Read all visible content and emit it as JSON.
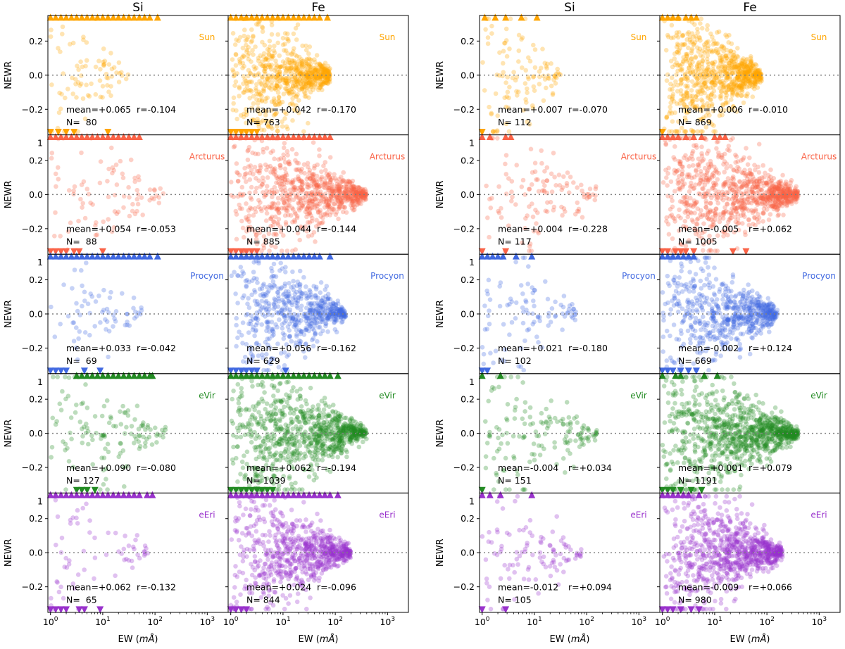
{
  "figure": {
    "ylabel": "NEWR",
    "xlabel": "EW (mÅ)",
    "xlabel_prefix": "EW (",
    "xlabel_unit": "mÅ",
    "xlabel_suffix": ")",
    "ytick_labels": [
      "0.2",
      "0.0",
      "−0.2"
    ],
    "ytick_values": [
      0.2,
      0.0,
      -0.2
    ],
    "ylim": [
      -0.35,
      0.35
    ],
    "xlim_log10": [
      -0.05,
      3.4
    ],
    "xticks": [
      {
        "base": "10",
        "exp": "0",
        "log": 0
      },
      {
        "base": "10",
        "exp": "1",
        "log": 1
      },
      {
        "base": "10",
        "exp": "2",
        "log": 2
      },
      {
        "base": "10",
        "exp": "3",
        "log": 3
      }
    ],
    "top_clip_label": "1",
    "reference_line": 0.0
  },
  "columns": [
    "Si",
    "Fe",
    "Si",
    "Fe"
  ],
  "stars": [
    "Sun",
    "Arcturus",
    "Procyon",
    "eVir",
    "eEri"
  ],
  "colors": {
    "Sun": "#ffa500",
    "Arcturus": "#fa6347",
    "Procyon": "#4169e1",
    "eVir": "#228b22",
    "eEri": "#9932cc"
  },
  "chart_data": {
    "type": "scatter",
    "x_scale": "log",
    "stats": [
      [
        {
          "mean": "mean=+0.065",
          "r": "r=-0.104",
          "n": "N=  80"
        },
        {
          "mean": "mean=+0.042",
          "r": "r=-0.170",
          "n": "N= 763"
        },
        {
          "mean": "mean=+0.007",
          "r": "r=-0.070",
          "n": "N= 112"
        },
        {
          "mean": "mean=+0.006",
          "r": "r=-0.010",
          "n": "N= 869"
        }
      ],
      [
        {
          "mean": "mean=+0.054",
          "r": "r=-0.053",
          "n": "N=  88"
        },
        {
          "mean": "mean=+0.044",
          "r": "r=-0.144",
          "n": "N= 885"
        },
        {
          "mean": "mean=+0.004",
          "r": "r=-0.228",
          "n": "N= 117"
        },
        {
          "mean": "mean=-0.005",
          "r": "r=+0.062",
          "n": "N= 1005"
        }
      ],
      [
        {
          "mean": "mean=+0.033",
          "r": "r=-0.042",
          "n": "N=  69"
        },
        {
          "mean": "mean=+0.056",
          "r": "r=-0.162",
          "n": "N= 629"
        },
        {
          "mean": "mean=+0.021",
          "r": "r=-0.180",
          "n": "N= 102"
        },
        {
          "mean": "mean=-0.002",
          "r": "r=+0.124",
          "n": "N= 669"
        }
      ],
      [
        {
          "mean": "mean=+0.090",
          "r": "r=-0.080",
          "n": "N= 127"
        },
        {
          "mean": "mean=+0.062",
          "r": "r=-0.194",
          "n": "N= 1039"
        },
        {
          "mean": "mean=-0.004",
          "r": "r=+0.034",
          "n": "N= 151"
        },
        {
          "mean": "mean=+0.001",
          "r": "r=+0.079",
          "n": "N= 1191"
        }
      ],
      [
        {
          "mean": "mean=+0.062",
          "r": "r=-0.132",
          "n": "N=  65"
        },
        {
          "mean": "mean=+0.024",
          "r": "r=-0.096",
          "n": "N= 844"
        },
        {
          "mean": "mean=-0.012",
          "r": "r=+0.094",
          "n": "N= 105"
        },
        {
          "mean": "mean=-0.009",
          "r": "r=+0.066",
          "n": "N= 980"
        }
      ]
    ],
    "ew_range_log10": [
      [
        0.0,
        1.9
      ],
      [
        0.0,
        2.6
      ],
      [
        0.0,
        2.2
      ],
      [
        0.0,
        2.6
      ],
      [
        0.0,
        2.3
      ]
    ],
    "clipped_markers_log10": {
      "top": [
        [
          [
            0.0,
            0.1,
            0.2,
            0.3,
            0.4,
            0.5,
            0.6,
            0.7,
            0.8,
            0.9,
            1.0,
            1.1,
            1.2,
            1.3,
            1.4,
            1.5,
            1.6,
            1.7,
            1.8,
            1.9,
            2.05
          ],
          [
            0.0,
            0.1,
            0.2,
            0.3,
            0.4,
            0.5,
            0.6,
            0.7,
            0.8,
            0.9,
            1.0,
            1.1,
            1.2,
            1.3,
            1.4,
            1.5,
            1.6,
            1.7,
            1.85
          ],
          [
            0.05,
            0.25,
            0.45,
            0.75,
            1.05
          ],
          [
            0.0,
            0.1,
            0.2,
            0.3,
            0.45,
            0.55,
            0.65
          ]
        ],
        [
          [
            0.0,
            0.1,
            0.2,
            0.3,
            0.4,
            0.5,
            0.6,
            0.7,
            0.8,
            0.9,
            1.0,
            1.1,
            1.2,
            1.3,
            1.4,
            1.5,
            1.6,
            1.7
          ],
          [
            0.0,
            0.1,
            0.2,
            0.3,
            0.4,
            0.5,
            0.6,
            0.7,
            0.8,
            0.9,
            1.0,
            1.1,
            1.2,
            1.3,
            1.4,
            1.5,
            1.6,
            1.7,
            1.8,
            1.9
          ],
          [
            0.0,
            0.15,
            0.45,
            0.55
          ],
          [
            0.0,
            0.1,
            0.2,
            0.3,
            0.45,
            0.6,
            0.75,
            1.0,
            1.1,
            1.2
          ]
        ],
        [
          [
            0.0,
            0.1,
            0.2,
            0.3,
            0.4,
            0.5,
            0.6,
            0.7,
            0.8,
            0.9,
            1.0,
            1.1,
            1.2,
            1.3,
            1.4,
            1.5,
            1.6,
            1.7,
            1.8,
            1.9,
            2.05
          ],
          [
            0.0,
            0.1,
            0.2,
            0.3,
            0.4,
            0.5,
            0.6,
            0.7,
            0.8,
            0.9,
            1.0,
            1.1,
            1.2,
            1.3,
            1.4,
            1.5,
            1.6,
            1.7,
            1.9
          ],
          [
            0.0,
            0.1,
            0.2,
            0.3,
            0.4,
            0.65,
            0.95
          ],
          [
            0.0,
            0.1,
            0.2,
            0.3,
            0.4,
            0.5,
            0.6
          ]
        ],
        [
          [
            0.5,
            0.6,
            0.7,
            0.8,
            0.9,
            1.0,
            1.1,
            1.2,
            1.3,
            1.4,
            1.5,
            1.6,
            1.7,
            1.8,
            1.9,
            1.95
          ],
          [
            0.0,
            0.1,
            0.2,
            0.3,
            0.4,
            0.5,
            0.6,
            0.7,
            0.8,
            0.9,
            1.0,
            1.1,
            1.2,
            1.3,
            1.4,
            1.5,
            1.6,
            1.7,
            1.8,
            1.9,
            2.05
          ],
          [
            0.0,
            0.35
          ],
          [
            0.0,
            0.25,
            0.35,
            0.8,
            1.05
          ]
        ],
        [
          [
            0.0,
            0.1,
            0.2,
            0.3,
            0.4,
            0.5,
            0.6,
            0.7,
            0.8,
            0.9,
            1.0,
            1.1,
            1.2,
            1.3,
            1.4,
            1.5,
            1.6,
            1.7,
            1.85,
            1.95
          ],
          [
            0.0,
            0.1,
            0.2,
            0.3,
            0.4,
            0.5,
            0.6,
            0.7,
            0.8,
            0.9,
            1.0,
            1.1,
            1.2,
            1.3,
            1.4,
            1.5,
            1.6,
            1.7,
            1.8,
            1.9,
            2.05
          ],
          [
            0.0,
            0.15,
            0.35,
            0.95
          ],
          [
            0.0,
            0.1,
            0.2,
            0.3,
            0.4,
            0.5,
            0.7
          ]
        ]
      ],
      "bottom": [
        [
          [
            0.0,
            0.15,
            0.3,
            0.45,
            1.1
          ],
          [
            0.0,
            0.1,
            0.2,
            0.3,
            0.4,
            0.5
          ],
          [
            0.0
          ],
          [
            0.0
          ]
        ],
        [
          [
            0.0,
            0.1,
            0.2,
            0.3,
            0.45,
            0.55,
            1.0
          ],
          [
            0.0,
            0.1,
            0.2,
            0.3,
            0.4,
            0.5
          ],
          [
            0.0,
            0.45
          ],
          [
            0.0,
            0.1,
            0.25,
            0.35,
            0.45,
            0.6,
            1.35,
            1.6
          ]
        ],
        [
          [
            0.0,
            0.1,
            0.2,
            0.3,
            0.65,
            0.95
          ],
          [
            0.0,
            0.1,
            0.2,
            0.3,
            0.4,
            0.5,
            1.05
          ],
          [
            0.0,
            0.1
          ],
          [
            0.0,
            0.1,
            0.2,
            0.35,
            0.5,
            0.65
          ]
        ],
        [
          [
            0.5,
            0.6,
            0.7,
            0.85
          ],
          [
            0.0,
            0.1,
            0.2,
            0.3,
            0.4,
            0.5,
            0.6,
            0.7,
            0.8
          ],
          [
            0.0
          ],
          [
            0.0,
            0.1,
            0.2,
            0.35,
            0.55,
            0.75
          ]
        ],
        [
          [
            0.0,
            0.1,
            0.2,
            0.3,
            0.55,
            0.65,
            0.95
          ],
          [
            0.0,
            0.1,
            0.2,
            0.3
          ],
          [
            0.0,
            0.45
          ],
          [
            0.0,
            0.1,
            0.2,
            0.35,
            0.55,
            0.7
          ]
        ]
      ]
    }
  }
}
